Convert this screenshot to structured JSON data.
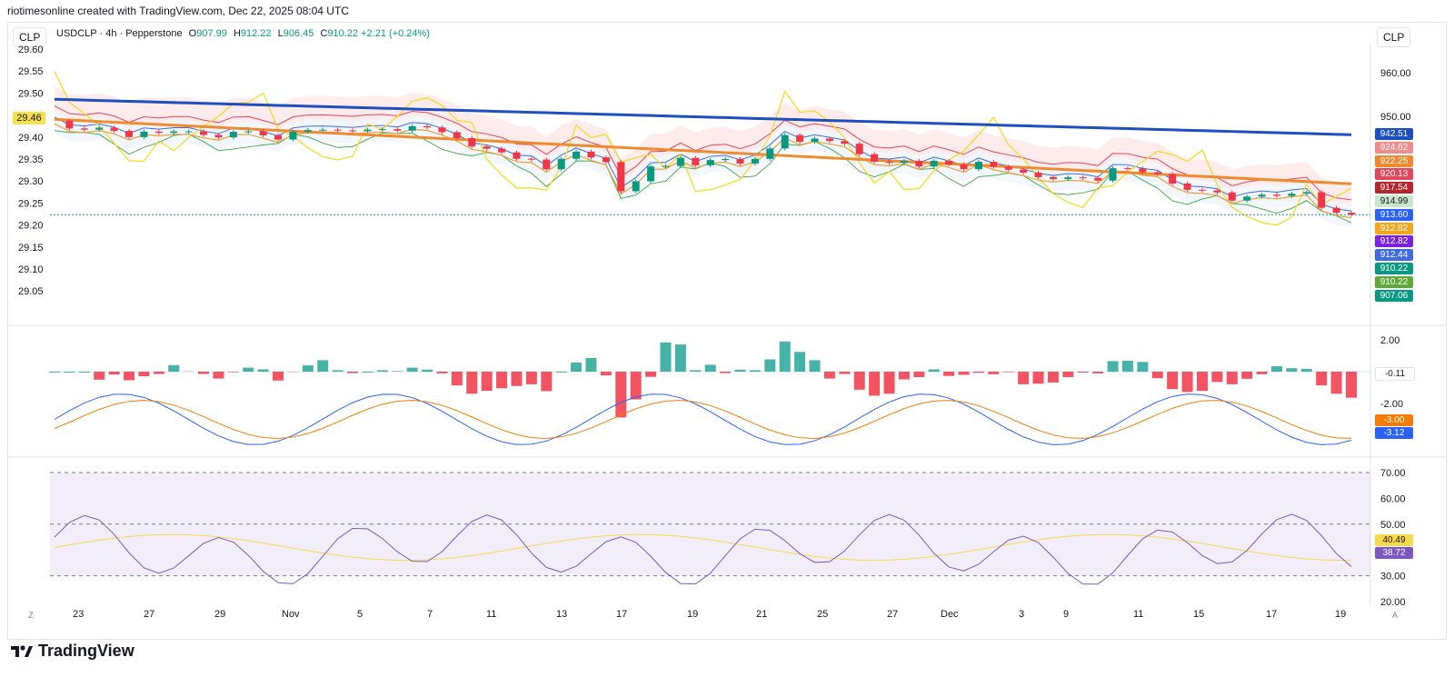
{
  "header_text": "riotimesonline created with TradingView.com, Dec 22, 2025 08:04 UTC",
  "left_badge": "CLP",
  "right_badge": "CLP",
  "legend": {
    "symbol": "USDCLP · 4h · Pepperstone",
    "o_label": "O",
    "o": "907.99",
    "h_label": "H",
    "h": "912.22",
    "l_label": "L",
    "l": "906.45",
    "c_label": "C",
    "c": "910.22",
    "change": "+2.21 (+0.24%)"
  },
  "left_axis": [
    "29.60",
    "29.55",
    "29.50",
    "29.45",
    "29.40",
    "29.35",
    "29.30",
    "29.25",
    "29.20",
    "29.15",
    "29.10",
    "29.05"
  ],
  "left_axis_tag": "29.46",
  "right_axis": [
    "960.00",
    "950.00"
  ],
  "price_tags": [
    {
      "text": "942.51",
      "color": "#1e4fc2"
    },
    {
      "text": "924.62",
      "color": "#f28b8b"
    },
    {
      "text": "922.25",
      "color": "#f0892e"
    },
    {
      "text": "920.13",
      "color": "#e2475c"
    },
    {
      "text": "917.54",
      "color": "#b7262c"
    },
    {
      "text": "914.99",
      "color": "#c8e6c9"
    },
    {
      "text": "913.60",
      "color": "#2962ff"
    },
    {
      "text": "912.82",
      "color": "#f7a51b"
    },
    {
      "text": "912.82",
      "color": "#7b22e0"
    },
    {
      "text": "912.44",
      "color": "#3f6de0"
    },
    {
      "text": "910.22",
      "color": "#089981"
    },
    {
      "text": "910.22",
      "color": "#5fa83a"
    },
    {
      "text": "907.06",
      "color": "#089981"
    }
  ],
  "macd_axis": [
    "2.00",
    "-2.00"
  ],
  "macd_tags": [
    {
      "text": "-0.11",
      "color": "#ffffff"
    },
    {
      "text": "-3.00",
      "color": "#f57c00"
    },
    {
      "text": "-3.12",
      "color": "#2962ff"
    }
  ],
  "rsi_axis": [
    "70.00",
    "60.00",
    "50.00",
    "30.00",
    "20.00"
  ],
  "rsi_tags": [
    {
      "text": "40.49",
      "color": "#f9d949"
    },
    {
      "text": "38.72",
      "color": "#7e57c2"
    }
  ],
  "date_labels": [
    "23",
    "27",
    "29",
    "Nov",
    "5",
    "7",
    "11",
    "13",
    "17",
    "19",
    "21",
    "25",
    "27",
    "Dec",
    "3",
    "9",
    "11",
    "15",
    "17",
    "19"
  ],
  "corner_left": "Z",
  "corner_right": "A",
  "footer_brand": "TradingView",
  "chart_data": {
    "type": "candlestick",
    "title": "USDCLP · 4h · Pepperstone",
    "right_axis_ticks": [
      960.0,
      950.0
    ],
    "left_axis_ticks": [
      29.6,
      29.55,
      29.5,
      29.45,
      29.4,
      29.35,
      29.3,
      29.25,
      29.2,
      29.15,
      29.1,
      29.05
    ],
    "ohlc_last": {
      "open": 907.99,
      "high": 912.22,
      "low": 906.45,
      "close": 910.22,
      "change": 2.21,
      "change_pct": 0.24
    },
    "closes": [
      948.2,
      945.1,
      944.6,
      945.4,
      944.1,
      941.6,
      943.8,
      943.3,
      943.9,
      943.9,
      942.5,
      941.5,
      943.7,
      943.9,
      942.3,
      940.6,
      943.8,
      944.5,
      944.6,
      944.3,
      944.0,
      944.6,
      944.8,
      944.2,
      946.0,
      945.5,
      943.6,
      941.2,
      937.8,
      936.9,
      935.4,
      932.8,
      932.5,
      928.6,
      932.8,
      935.7,
      933.4,
      931.5,
      919.7,
      923.7,
      929.7,
      929.9,
      933.2,
      930.2,
      932.3,
      932.7,
      930.9,
      932.8,
      937.0,
      942.4,
      939.7,
      941.0,
      940.0,
      938.9,
      934.7,
      931.6,
      931.2,
      932.0,
      929.7,
      932.0,
      930.5,
      928.6,
      931.6,
      929.6,
      928.4,
      927.2,
      925.4,
      924.6,
      925.3,
      925.1,
      924.0,
      929.0,
      928.9,
      927.4,
      926.7,
      922.8,
      920.3,
      920.0,
      919.2,
      915.9,
      917.5,
      918.3,
      917.8,
      918.7,
      919.3,
      913.0,
      911.0,
      910.2
    ],
    "ema_long_end": 942.51,
    "macd": {
      "histogram_last": -0.11,
      "macd_last": -3.12,
      "signal_last": -3.0,
      "axis_ticks": [
        2.0,
        -2.0
      ]
    },
    "rsi": {
      "rsi_last": 38.72,
      "ma_last": 40.49,
      "levels": [
        70,
        50,
        30
      ],
      "axis_ticks": [
        70,
        60,
        50,
        30,
        20
      ]
    }
  }
}
